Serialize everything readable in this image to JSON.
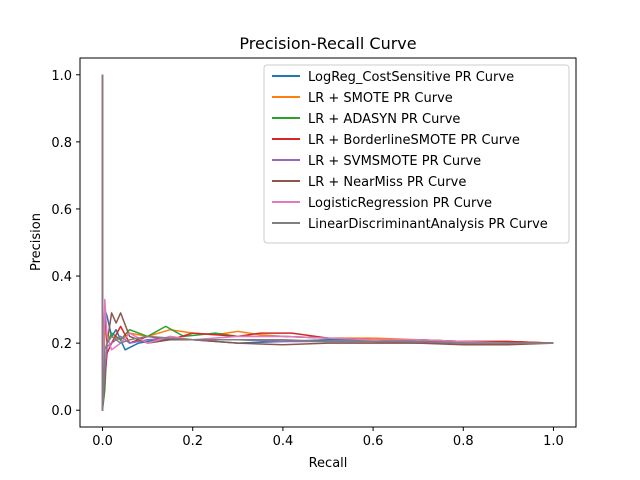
{
  "chart_data": {
    "type": "line",
    "title": "Precision-Recall Curve",
    "xlabel": "Recall",
    "ylabel": "Precision",
    "xlim": [
      -0.05,
      1.05
    ],
    "ylim": [
      -0.05,
      1.05
    ],
    "xticks": [
      0.0,
      0.2,
      0.4,
      0.6,
      0.8,
      1.0
    ],
    "yticks": [
      0.0,
      0.2,
      0.4,
      0.6,
      0.8,
      1.0
    ],
    "xtick_labels": [
      "0.0",
      "0.2",
      "0.4",
      "0.6",
      "0.8",
      "1.0"
    ],
    "ytick_labels": [
      "0.0",
      "0.2",
      "0.4",
      "0.6",
      "0.8",
      "1.0"
    ],
    "grid": false,
    "legend_position": "upper right",
    "series": [
      {
        "name": "LogReg_CostSensitive PR Curve",
        "color": "#1f77b4",
        "x": [
          0,
          0,
          0.005,
          0.01,
          0.02,
          0.03,
          0.05,
          0.08,
          0.12,
          0.2,
          0.3,
          0.4,
          0.5,
          0.6,
          0.7,
          0.8,
          0.9,
          1.0
        ],
        "y": [
          1.0,
          0.0,
          0.3,
          0.28,
          0.22,
          0.24,
          0.18,
          0.2,
          0.21,
          0.21,
          0.2,
          0.205,
          0.21,
          0.21,
          0.205,
          0.205,
          0.2,
          0.2
        ]
      },
      {
        "name": "LR + SMOTE PR Curve",
        "color": "#ff7f0e",
        "x": [
          0,
          0,
          0.005,
          0.01,
          0.02,
          0.04,
          0.06,
          0.1,
          0.15,
          0.2,
          0.25,
          0.3,
          0.35,
          0.4,
          0.5,
          0.6,
          0.7,
          0.8,
          0.9,
          1.0
        ],
        "y": [
          1.0,
          0.0,
          0.25,
          0.2,
          0.22,
          0.21,
          0.23,
          0.22,
          0.24,
          0.23,
          0.225,
          0.235,
          0.225,
          0.22,
          0.215,
          0.215,
          0.21,
          0.205,
          0.205,
          0.2
        ]
      },
      {
        "name": "LR + ADASYN PR Curve",
        "color": "#2ca02c",
        "x": [
          0,
          0,
          0.005,
          0.01,
          0.02,
          0.04,
          0.06,
          0.1,
          0.14,
          0.18,
          0.25,
          0.3,
          0.4,
          0.5,
          0.6,
          0.7,
          0.8,
          0.9,
          1.0
        ],
        "y": [
          1.0,
          0.0,
          0.06,
          0.2,
          0.23,
          0.21,
          0.24,
          0.22,
          0.25,
          0.22,
          0.23,
          0.22,
          0.22,
          0.215,
          0.21,
          0.21,
          0.205,
          0.205,
          0.2
        ]
      },
      {
        "name": "LR + BorderlineSMOTE PR Curve",
        "color": "#d62728",
        "x": [
          0,
          0,
          0.005,
          0.01,
          0.02,
          0.04,
          0.06,
          0.1,
          0.15,
          0.2,
          0.25,
          0.3,
          0.35,
          0.4,
          0.42,
          0.5,
          0.6,
          0.7,
          0.8,
          0.9,
          1.0
        ],
        "y": [
          1.0,
          0.0,
          0.1,
          0.17,
          0.2,
          0.25,
          0.2,
          0.22,
          0.21,
          0.23,
          0.225,
          0.22,
          0.23,
          0.23,
          0.23,
          0.215,
          0.21,
          0.21,
          0.205,
          0.205,
          0.2
        ]
      },
      {
        "name": "LR + SVMSMOTE PR Curve",
        "color": "#9467bd",
        "x": [
          0,
          0,
          0.005,
          0.01,
          0.02,
          0.04,
          0.06,
          0.1,
          0.15,
          0.2,
          0.3,
          0.4,
          0.5,
          0.6,
          0.7,
          0.8,
          0.9,
          1.0
        ],
        "y": [
          1.0,
          0.0,
          0.12,
          0.19,
          0.2,
          0.22,
          0.2,
          0.21,
          0.215,
          0.21,
          0.21,
          0.205,
          0.205,
          0.205,
          0.2,
          0.2,
          0.2,
          0.2
        ]
      },
      {
        "name": "LR + NearMiss PR Curve",
        "color": "#8c564b",
        "x": [
          0,
          0,
          0.005,
          0.01,
          0.02,
          0.03,
          0.04,
          0.06,
          0.1,
          0.15,
          0.2,
          0.3,
          0.4,
          0.5,
          0.6,
          0.7,
          0.8,
          0.9,
          1.0
        ],
        "y": [
          1.0,
          0.0,
          0.3,
          0.2,
          0.29,
          0.26,
          0.29,
          0.22,
          0.2,
          0.21,
          0.21,
          0.2,
          0.195,
          0.2,
          0.2,
          0.2,
          0.195,
          0.195,
          0.2
        ]
      },
      {
        "name": "LogisticRegression PR Curve",
        "color": "#e377c2",
        "x": [
          0,
          0,
          0.005,
          0.01,
          0.02,
          0.04,
          0.06,
          0.1,
          0.15,
          0.2,
          0.3,
          0.4,
          0.5,
          0.6,
          0.7,
          0.8,
          0.9,
          1.0
        ],
        "y": [
          1.0,
          0.0,
          0.33,
          0.22,
          0.18,
          0.2,
          0.23,
          0.2,
          0.22,
          0.21,
          0.22,
          0.22,
          0.215,
          0.21,
          0.21,
          0.205,
          0.2,
          0.2
        ]
      },
      {
        "name": "LinearDiscriminantAnalysis PR Curve",
        "color": "#7f7f7f",
        "x": [
          0,
          0,
          0.005,
          0.01,
          0.02,
          0.04,
          0.06,
          0.1,
          0.15,
          0.2,
          0.3,
          0.4,
          0.5,
          0.6,
          0.7,
          0.8,
          0.9,
          1.0
        ],
        "y": [
          1.0,
          0.0,
          0.18,
          0.2,
          0.22,
          0.2,
          0.21,
          0.22,
          0.215,
          0.21,
          0.21,
          0.21,
          0.205,
          0.205,
          0.205,
          0.2,
          0.2,
          0.2
        ]
      }
    ]
  }
}
